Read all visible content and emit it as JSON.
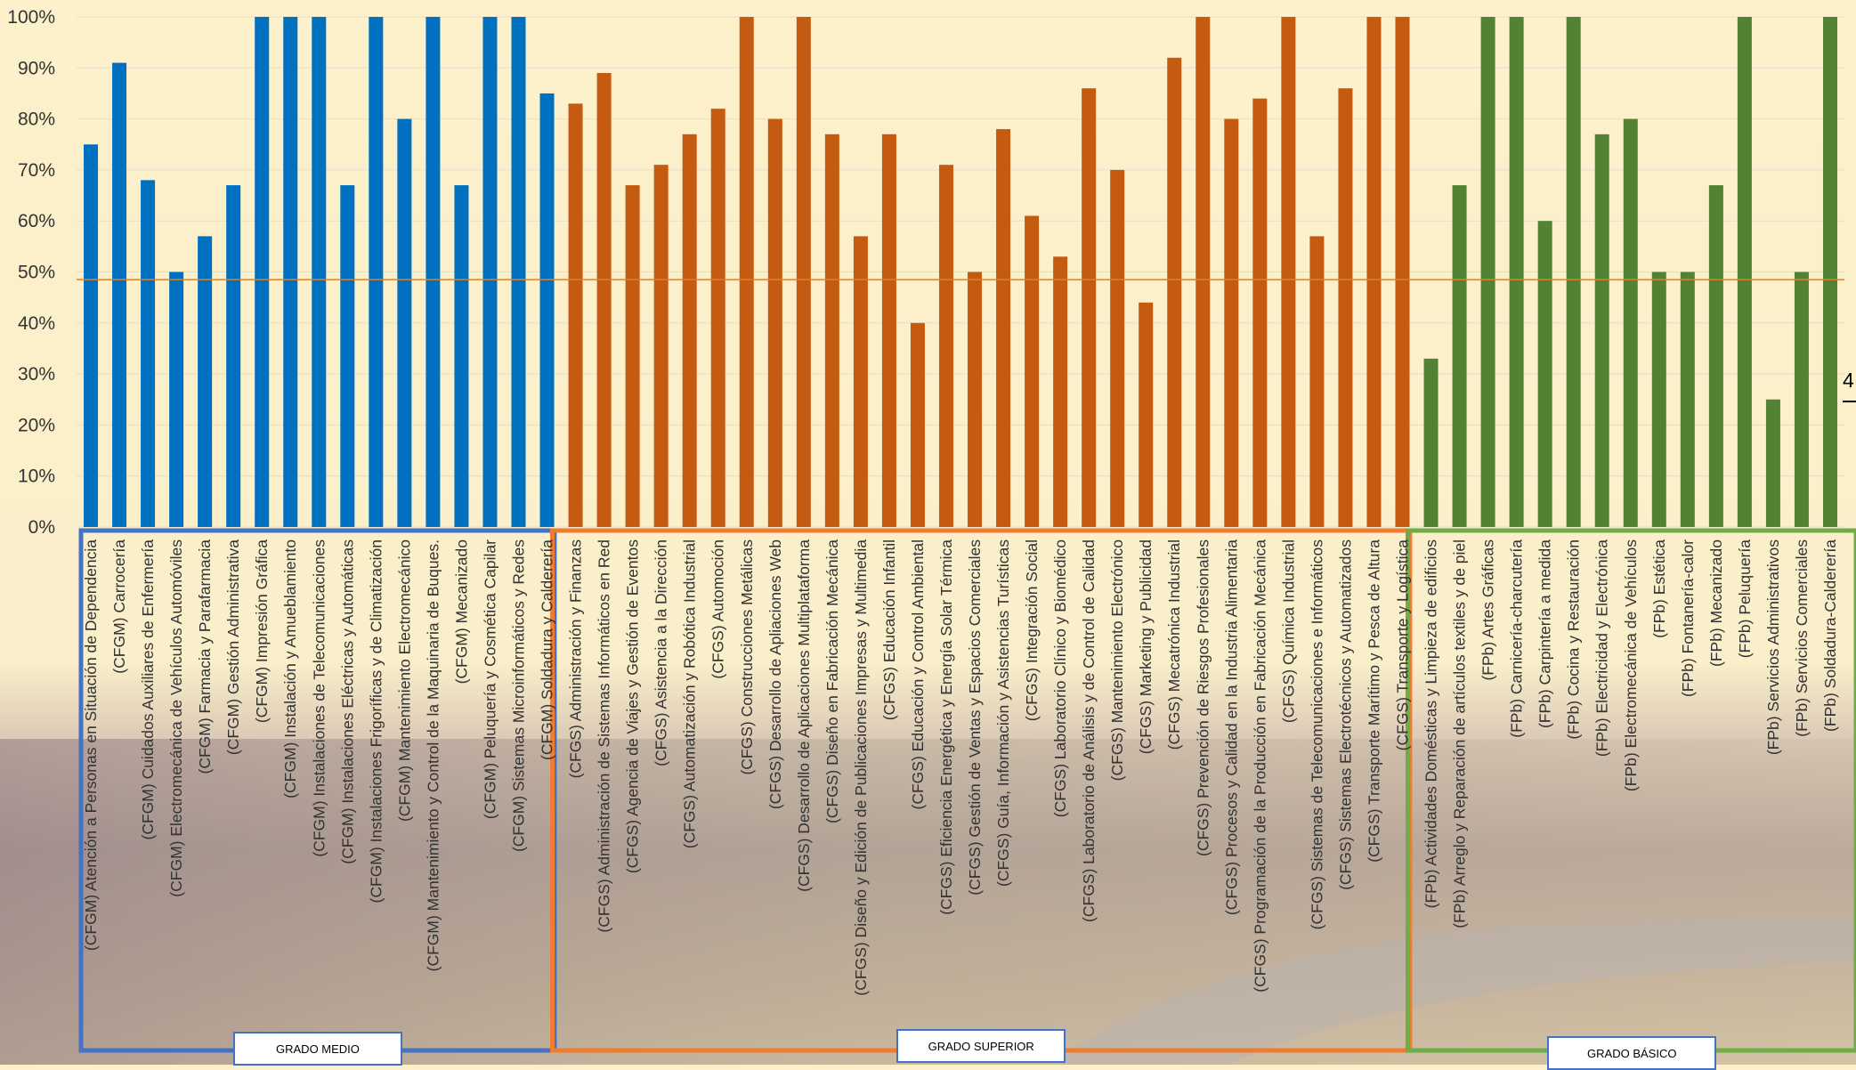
{
  "chart_data": {
    "type": "bar",
    "title": "",
    "xlabel": "",
    "ylabel": "",
    "ylim": [
      0,
      1
    ],
    "y_ticks": [
      "0%",
      "10%",
      "20%",
      "30%",
      "40%",
      "50%",
      "60%",
      "70%",
      "80%",
      "90%",
      "100%"
    ],
    "grid": "horizontal",
    "legend": "none",
    "reference_line": {
      "value": 0.485,
      "color": "#d9822b"
    },
    "groups": [
      {
        "name": "GRADO MEDIO",
        "color": "#0070c0",
        "frame_color": "#4472c4",
        "categories": [
          "(CFGM) Atención a Personas en Situación de Dependencia",
          "(CFGM) Carrocería",
          "(CFGM) Cuidados Auxiliares de Enfermería",
          "(CFGM) Electromecánica de Vehículos Automóviles",
          "(CFGM) Farmacia y Parafarmacia",
          "(CFGM) Gestión Administrativa",
          "(CFGM) Impresión Gráfica",
          "(CFGM) Instalación y Amueblamiento",
          "(CFGM) Instalaciones de Telecomunicaciones",
          "(CFGM) Instalaciones Eléctricas y Automáticas",
          "(CFGM) Instalaciones Frigoríficas y de Climatización",
          "(CFGM) Mantenimiento Electromecánico",
          "(CFGM) Mantenimiento y Control de la Maquinaria de Buques.",
          "(CFGM) Mecanizado",
          "(CFGM) Peluquería y Cosmética Capilar",
          "(CFGM) Sistemas Microinformáticos y Redes",
          "(CFGM) Soldadura y Calderería"
        ],
        "values": [
          0.75,
          0.91,
          0.68,
          0.5,
          0.57,
          0.67,
          1.0,
          1.0,
          1.0,
          0.67,
          1.0,
          0.8,
          1.0,
          0.67,
          1.0,
          1.0,
          0.85
        ]
      },
      {
        "name": "GRADO SUPERIOR",
        "color": "#c55a11",
        "frame_color": "#ed7d31",
        "categories": [
          "(CFGS) Administración y Finanzas",
          "(CFGS) Administración de Sistemas Informáticos en Red",
          "(CFGS) Agencia de Viajes y Gestión de Eventos",
          "(CFGS) Asistencia a la Dirección",
          "(CFGS) Automatización y Robótica Industrial",
          "(CFGS) Automoción",
          "(CFGS) Construcciones Metálicas",
          "(CFGS) Desarrollo de Apliaciones Web",
          "(CFGS) Desarrollo de Aplicaciones Multiplataforma",
          "(CFGS) Diseño en Fabricación Mecánica",
          "(CFGS) Diseño y Edición de Publicaciones Impresas y Multimedia",
          "(CFGS) Educación Infantil",
          "(CFGS) Educación y Control Ambiental",
          "(CFGS) Eficiencia Energética y Energía Solar Térmica",
          "(CFGS) Gestión de Ventas y Espacios Comerciales",
          "(CFGS) Guía, Información y Asistencias Turísticas",
          "(CFGS) Integración Social",
          "(CFGS) Laboratorio Clínico y Biomédico",
          "(CFGS) Laboratorio de Análisis y de Control de Calidad",
          "(CFGS) Mantenimiento Electrónico",
          "(CFGS) Marketing y Publicidad",
          "(CFGS) Mecatrónica Industrial",
          "(CFGS) Prevención de Riesgos Profesionales",
          "(CFGS) Procesos y Calidad en la Industria Alimentaria",
          "(CFGS) Programación de la Producción en Fabricación Mecánica",
          "(CFGS) Química Industrial",
          "(CFGS) Sistemas de Telecomunicaciones e Informáticos",
          "(CFGS) Sistemas Electrotécnicos y Automatizados",
          "(CFGS) Transporte Marítimo y Pesca de Altura",
          "(CFGS) Transporte y Logística"
        ],
        "values": [
          0.83,
          0.89,
          0.67,
          0.71,
          0.77,
          0.82,
          1.0,
          0.8,
          1.0,
          0.77,
          0.57,
          0.77,
          0.4,
          0.71,
          0.5,
          0.78,
          0.61,
          0.53,
          0.86,
          0.7,
          0.44,
          0.92,
          1.0,
          0.8,
          0.84,
          1.0,
          0.57,
          0.86,
          1.0,
          1.0
        ]
      },
      {
        "name": "GRADO BÁSICO",
        "color": "#548235",
        "frame_color": "#70ad47",
        "categories": [
          "(FPb) Actividades Domésticas y Limpieza de edificios",
          "(FPb) Arreglo y Reparación de artículos textiles y de piel",
          "(FPb) Artes Gráficas",
          "(FPb) Carnicería-charcutería",
          "(FPb) Carpintería a medida",
          "(FPb) Cocina y Restauración",
          "(FPb) Electricidad y Electrónica",
          "(FPb) Electromecánica de Vehículos",
          "(FPb) Estética",
          "(FPb) Fontanería-calor",
          "(FPb) Mecanizado",
          "(FPb) Peluquería",
          "(FPb) Servicios Administrativos",
          "(FPb) Servicios Comerciales",
          "(FPb) Soldadura-Calderería"
        ],
        "values": [
          0.33,
          0.67,
          1.0,
          1.0,
          0.6,
          1.0,
          0.77,
          0.8,
          0.5,
          0.5,
          0.67,
          1.0,
          0.25,
          0.5,
          1.0
        ]
      }
    ],
    "edge_label": "4"
  }
}
